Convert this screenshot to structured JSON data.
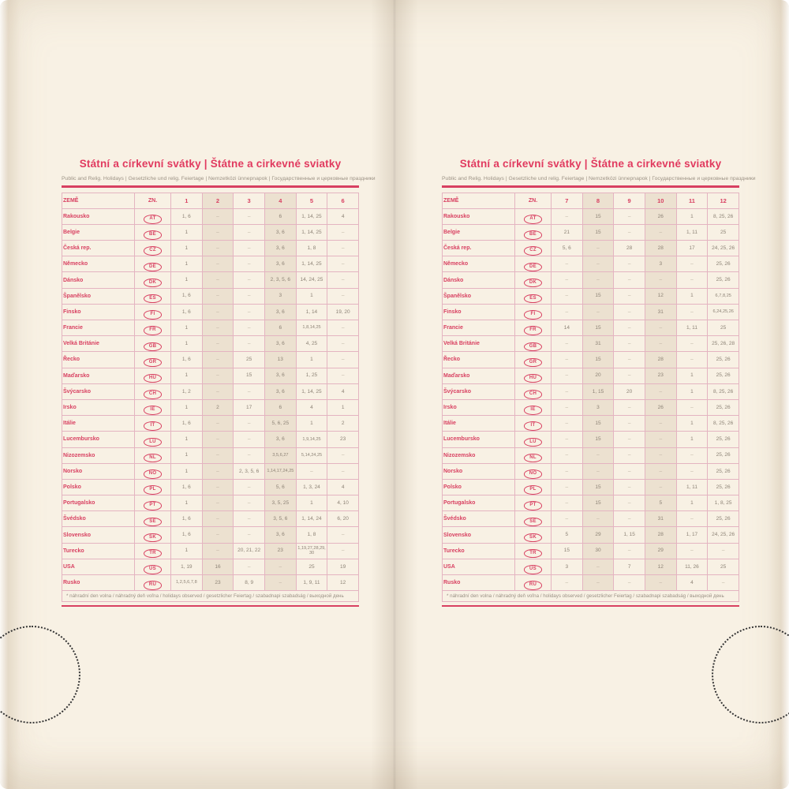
{
  "colors": {
    "accent": "#d84061",
    "title": "#e13a5f",
    "paper": "#f8f1e4",
    "column_shade": "#ece1d0",
    "grid_line": "#e4b4c1",
    "cell_text": "#8d8376"
  },
  "dash": "–",
  "pages": [
    {
      "title": "Státní a církevní svátky | Štátne a cirkevné sviatky",
      "subtitle": "Public and Relig. Holidays | Gesetzliche und relig. Feiertage | Nemzetközi ünnepnapok | Государственные и церковные праздники",
      "columns": {
        "country": "ZEMĚ",
        "code": "ZN."
      },
      "months": [
        "1",
        "2",
        "3",
        "4",
        "5",
        "6"
      ],
      "footnote": "* náhradní den volna / náhradný deň voľna / holidays observed / gesetzlicher Feiertag / szabadnapi szabadság / выходной день",
      "rows": [
        {
          "country": "Rakousko",
          "code": "AT",
          "values": [
            "1, 6",
            "–",
            "–",
            "6",
            "1, 14, 25",
            "4"
          ]
        },
        {
          "country": "Belgie",
          "code": "BE",
          "values": [
            "1",
            "–",
            "–",
            "3, 6",
            "1, 14, 25",
            "–"
          ]
        },
        {
          "country": "Česká rep.",
          "code": "CZ",
          "values": [
            "1",
            "–",
            "–",
            "3, 6",
            "1, 8",
            "–"
          ]
        },
        {
          "country": "Německo",
          "code": "DE",
          "values": [
            "1",
            "–",
            "–",
            "3, 6",
            "1, 14, 25",
            "–"
          ]
        },
        {
          "country": "Dánsko",
          "code": "DK",
          "values": [
            "1",
            "–",
            "–",
            "2, 3, 5, 6",
            "14, 24, 25",
            "–"
          ]
        },
        {
          "country": "Španělsko",
          "code": "ES",
          "values": [
            "1, 6",
            "–",
            "–",
            "3",
            "1",
            "–"
          ]
        },
        {
          "country": "Finsko",
          "code": "FI",
          "values": [
            "1, 6",
            "–",
            "–",
            "3, 6",
            "1, 14",
            "19, 20"
          ]
        },
        {
          "country": "Francie",
          "code": "FR",
          "values": [
            "1",
            "–",
            "–",
            "6",
            "1, 8, 14, 25",
            "–"
          ]
        },
        {
          "country": "Velká Británie",
          "code": "GB",
          "values": [
            "1",
            "–",
            "–",
            "3, 6",
            "4, 25",
            "–"
          ]
        },
        {
          "country": "Řecko",
          "code": "GR",
          "values": [
            "1, 6",
            "–",
            "25",
            "13",
            "1",
            "–"
          ]
        },
        {
          "country": "Maďarsko",
          "code": "HU",
          "values": [
            "1",
            "–",
            "15",
            "3, 6",
            "1, 25",
            "–"
          ]
        },
        {
          "country": "Švýcarsko",
          "code": "CH",
          "values": [
            "1, 2",
            "–",
            "–",
            "3, 6",
            "1, 14, 25",
            "4"
          ]
        },
        {
          "country": "Irsko",
          "code": "IE",
          "values": [
            "1",
            "2",
            "17",
            "6",
            "4",
            "1"
          ]
        },
        {
          "country": "Itálie",
          "code": "IT",
          "values": [
            "1, 6",
            "–",
            "–",
            "5, 6, 25",
            "1",
            "2"
          ]
        },
        {
          "country": "Lucembursko",
          "code": "LU",
          "values": [
            "1",
            "–",
            "–",
            "3, 6",
            "1, 9, 14, 25",
            "23"
          ]
        },
        {
          "country": "Nizozemsko",
          "code": "NL",
          "values": [
            "1",
            "–",
            "–",
            "3, 5, 6, 27",
            "5, 14, 24, 25",
            "–"
          ]
        },
        {
          "country": "Norsko",
          "code": "NO",
          "values": [
            "1",
            "–",
            "2, 3, 5, 6",
            "1, 14, 17, 24, 25",
            "–",
            "–"
          ]
        },
        {
          "country": "Polsko",
          "code": "PL",
          "values": [
            "1, 6",
            "–",
            "–",
            "5, 6",
            "1, 3, 24",
            "4"
          ]
        },
        {
          "country": "Portugalsko",
          "code": "PT",
          "values": [
            "1",
            "–",
            "–",
            "3, 5, 25",
            "1",
            "4, 10"
          ]
        },
        {
          "country": "Švédsko",
          "code": "SE",
          "values": [
            "1, 6",
            "–",
            "–",
            "3, 5, 6",
            "1, 14, 24",
            "6, 20"
          ]
        },
        {
          "country": "Slovensko",
          "code": "SK",
          "values": [
            "1, 6",
            "–",
            "–",
            "3, 6",
            "1, 8",
            "–"
          ]
        },
        {
          "country": "Turecko",
          "code": "TR",
          "values": [
            "1",
            "–",
            "20, 21, 22",
            "23",
            "1, 19, 27, 28, 29, 30",
            "–"
          ]
        },
        {
          "country": "USA",
          "code": "US",
          "values": [
            "1, 19",
            "16",
            "–",
            "–",
            "25",
            "19"
          ]
        },
        {
          "country": "Rusko",
          "code": "RU",
          "values": [
            "1, 2, 5, 6, 7, 8",
            "23",
            "8, 9",
            "–",
            "1, 9, 11",
            "12"
          ]
        }
      ]
    },
    {
      "title": "Státní a církevní svátky | Štátne a cirkevné sviatky",
      "subtitle": "Public and Relig. Holidays | Gesetzliche und relig. Feiertage | Nemzetközi ünnepnapok | Государственные и церковные праздники",
      "columns": {
        "country": "ZEMĚ",
        "code": "ZN."
      },
      "months": [
        "7",
        "8",
        "9",
        "10",
        "11",
        "12"
      ],
      "footnote": "* náhradní den volna / náhradný deň voľna / holidays observed / gesetzlicher Feiertag / szabadnapi szabadság / выходной день",
      "rows": [
        {
          "country": "Rakousko",
          "code": "AT",
          "values": [
            "–",
            "15",
            "–",
            "26",
            "1",
            "8, 25, 26"
          ]
        },
        {
          "country": "Belgie",
          "code": "BE",
          "values": [
            "21",
            "15",
            "–",
            "–",
            "1, 11",
            "25"
          ]
        },
        {
          "country": "Česká rep.",
          "code": "CZ",
          "values": [
            "5, 6",
            "–",
            "28",
            "28",
            "17",
            "24, 25, 26"
          ]
        },
        {
          "country": "Německo",
          "code": "DE",
          "values": [
            "–",
            "–",
            "–",
            "3",
            "–",
            "25, 26"
          ]
        },
        {
          "country": "Dánsko",
          "code": "DK",
          "values": [
            "–",
            "–",
            "–",
            "–",
            "–",
            "25, 26"
          ]
        },
        {
          "country": "Španělsko",
          "code": "ES",
          "values": [
            "–",
            "15",
            "–",
            "12",
            "1",
            "6, 7, 8, 25"
          ]
        },
        {
          "country": "Finsko",
          "code": "FI",
          "values": [
            "–",
            "–",
            "–",
            "31",
            "–",
            "6, 24, 25, 26"
          ]
        },
        {
          "country": "Francie",
          "code": "FR",
          "values": [
            "14",
            "15",
            "–",
            "–",
            "1, 11",
            "25"
          ]
        },
        {
          "country": "Velká Británie",
          "code": "GB",
          "values": [
            "–",
            "31",
            "–",
            "–",
            "–",
            "25, 26, 28"
          ]
        },
        {
          "country": "Řecko",
          "code": "GR",
          "values": [
            "–",
            "15",
            "–",
            "28",
            "–",
            "25, 26"
          ]
        },
        {
          "country": "Maďarsko",
          "code": "HU",
          "values": [
            "–",
            "20",
            "–",
            "23",
            "1",
            "25, 26"
          ]
        },
        {
          "country": "Švýcarsko",
          "code": "CH",
          "values": [
            "–",
            "1, 15",
            "20",
            "–",
            "1",
            "8, 25, 26"
          ]
        },
        {
          "country": "Irsko",
          "code": "IE",
          "values": [
            "–",
            "3",
            "–",
            "26",
            "–",
            "25, 26"
          ]
        },
        {
          "country": "Itálie",
          "code": "IT",
          "values": [
            "–",
            "15",
            "–",
            "–",
            "1",
            "8, 25, 26"
          ]
        },
        {
          "country": "Lucembursko",
          "code": "LU",
          "values": [
            "–",
            "15",
            "–",
            "–",
            "1",
            "25, 26"
          ]
        },
        {
          "country": "Nizozemsko",
          "code": "NL",
          "values": [
            "–",
            "–",
            "–",
            "–",
            "–",
            "25, 26"
          ]
        },
        {
          "country": "Norsko",
          "code": "NO",
          "values": [
            "–",
            "–",
            "–",
            "–",
            "–",
            "25, 26"
          ]
        },
        {
          "country": "Polsko",
          "code": "PL",
          "values": [
            "–",
            "15",
            "–",
            "–",
            "1, 11",
            "25, 26"
          ]
        },
        {
          "country": "Portugalsko",
          "code": "PT",
          "values": [
            "–",
            "15",
            "–",
            "5",
            "1",
            "1, 8, 25"
          ]
        },
        {
          "country": "Švédsko",
          "code": "SE",
          "values": [
            "–",
            "–",
            "–",
            "31",
            "–",
            "25, 26"
          ]
        },
        {
          "country": "Slovensko",
          "code": "SK",
          "values": [
            "5",
            "29",
            "1, 15",
            "28",
            "1, 17",
            "24, 25, 26"
          ]
        },
        {
          "country": "Turecko",
          "code": "TR",
          "values": [
            "15",
            "30",
            "–",
            "29",
            "–",
            "–"
          ]
        },
        {
          "country": "USA",
          "code": "US",
          "values": [
            "3",
            "–",
            "7",
            "12",
            "11, 26",
            "25"
          ]
        },
        {
          "country": "Rusko",
          "code": "RU",
          "values": [
            "–",
            "–",
            "–",
            "–",
            "4",
            "–"
          ]
        }
      ]
    }
  ]
}
